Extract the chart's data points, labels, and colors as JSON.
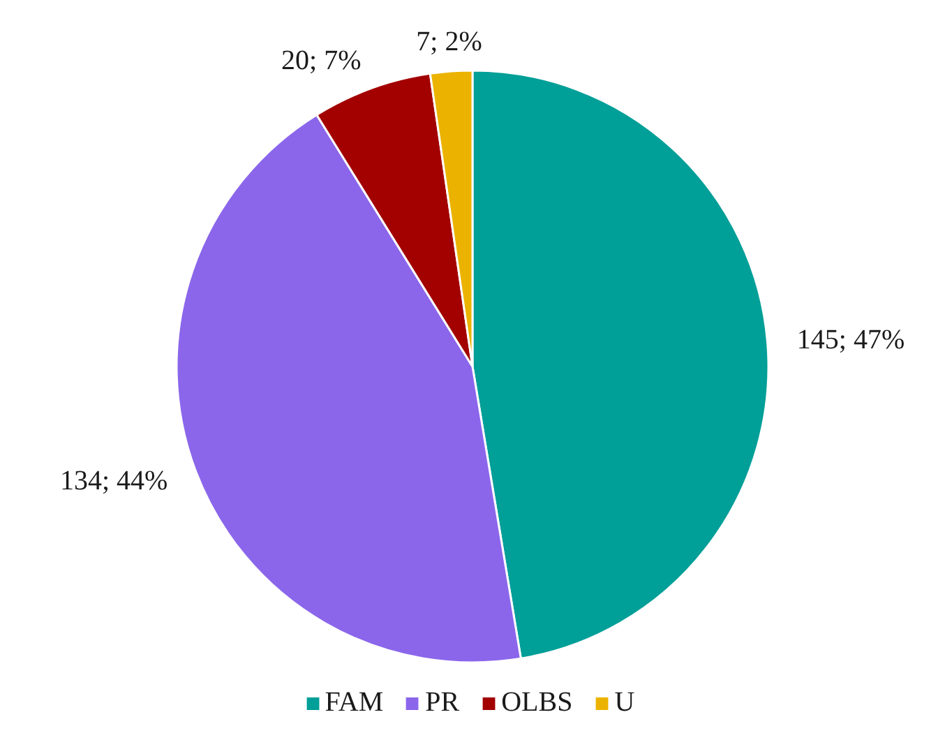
{
  "chart_data": {
    "type": "pie",
    "categories": [
      "FAM",
      "PR",
      "OLBS",
      "U"
    ],
    "values": [
      145,
      134,
      20,
      7
    ],
    "colors": [
      "#009f98",
      "#8b66eb",
      "#a30000",
      "#ebb300"
    ],
    "value_labels": [
      "145; 47%",
      "134; 44%",
      "20; 7%",
      "7; 2%"
    ],
    "legend": "bottom"
  }
}
